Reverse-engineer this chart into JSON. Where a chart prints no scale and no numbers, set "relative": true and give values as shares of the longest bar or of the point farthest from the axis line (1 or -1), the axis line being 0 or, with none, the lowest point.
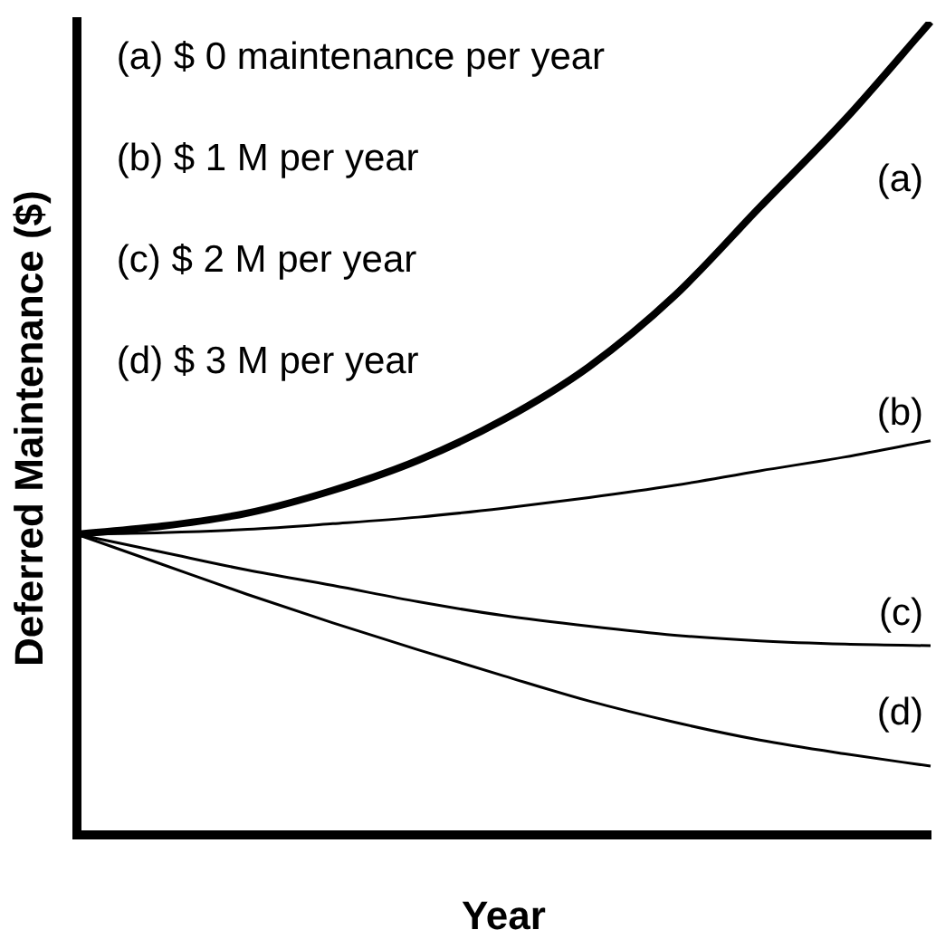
{
  "chart_data": {
    "type": "line",
    "relative": true,
    "xlabel": "Year",
    "ylabel": "Deferred Maintenance ($)",
    "categories": [
      null,
      null,
      null,
      null,
      null,
      null,
      null,
      null,
      null,
      null,
      null
    ],
    "annotations": [
      "(a) $ 0 maintenance per year",
      "(b) $ 1 M per year",
      "(c) $ 2 M per year",
      "(d) $ 3 M per year"
    ],
    "series": [
      {
        "name": "(a)",
        "color": "#000000",
        "values": [
          0.37,
          0.38,
          0.396,
          0.424,
          0.461,
          0.511,
          0.576,
          0.663,
          0.772,
          0.88,
          1.0
        ]
      },
      {
        "name": "(b)",
        "color": "#000000",
        "values": [
          0.37,
          0.372,
          0.376,
          0.383,
          0.391,
          0.402,
          0.415,
          0.43,
          0.448,
          0.465,
          0.485
        ]
      },
      {
        "name": "(c)",
        "color": "#000000",
        "values": [
          0.37,
          0.348,
          0.326,
          0.307,
          0.287,
          0.27,
          0.257,
          0.246,
          0.239,
          0.235,
          0.233
        ]
      },
      {
        "name": "(d)",
        "color": "#000000",
        "values": [
          0.37,
          0.333,
          0.296,
          0.261,
          0.228,
          0.196,
          0.165,
          0.139,
          0.117,
          0.1,
          0.085
        ]
      }
    ],
    "grid": false,
    "legend": false,
    "marker": "none",
    "line_style": "solid"
  }
}
